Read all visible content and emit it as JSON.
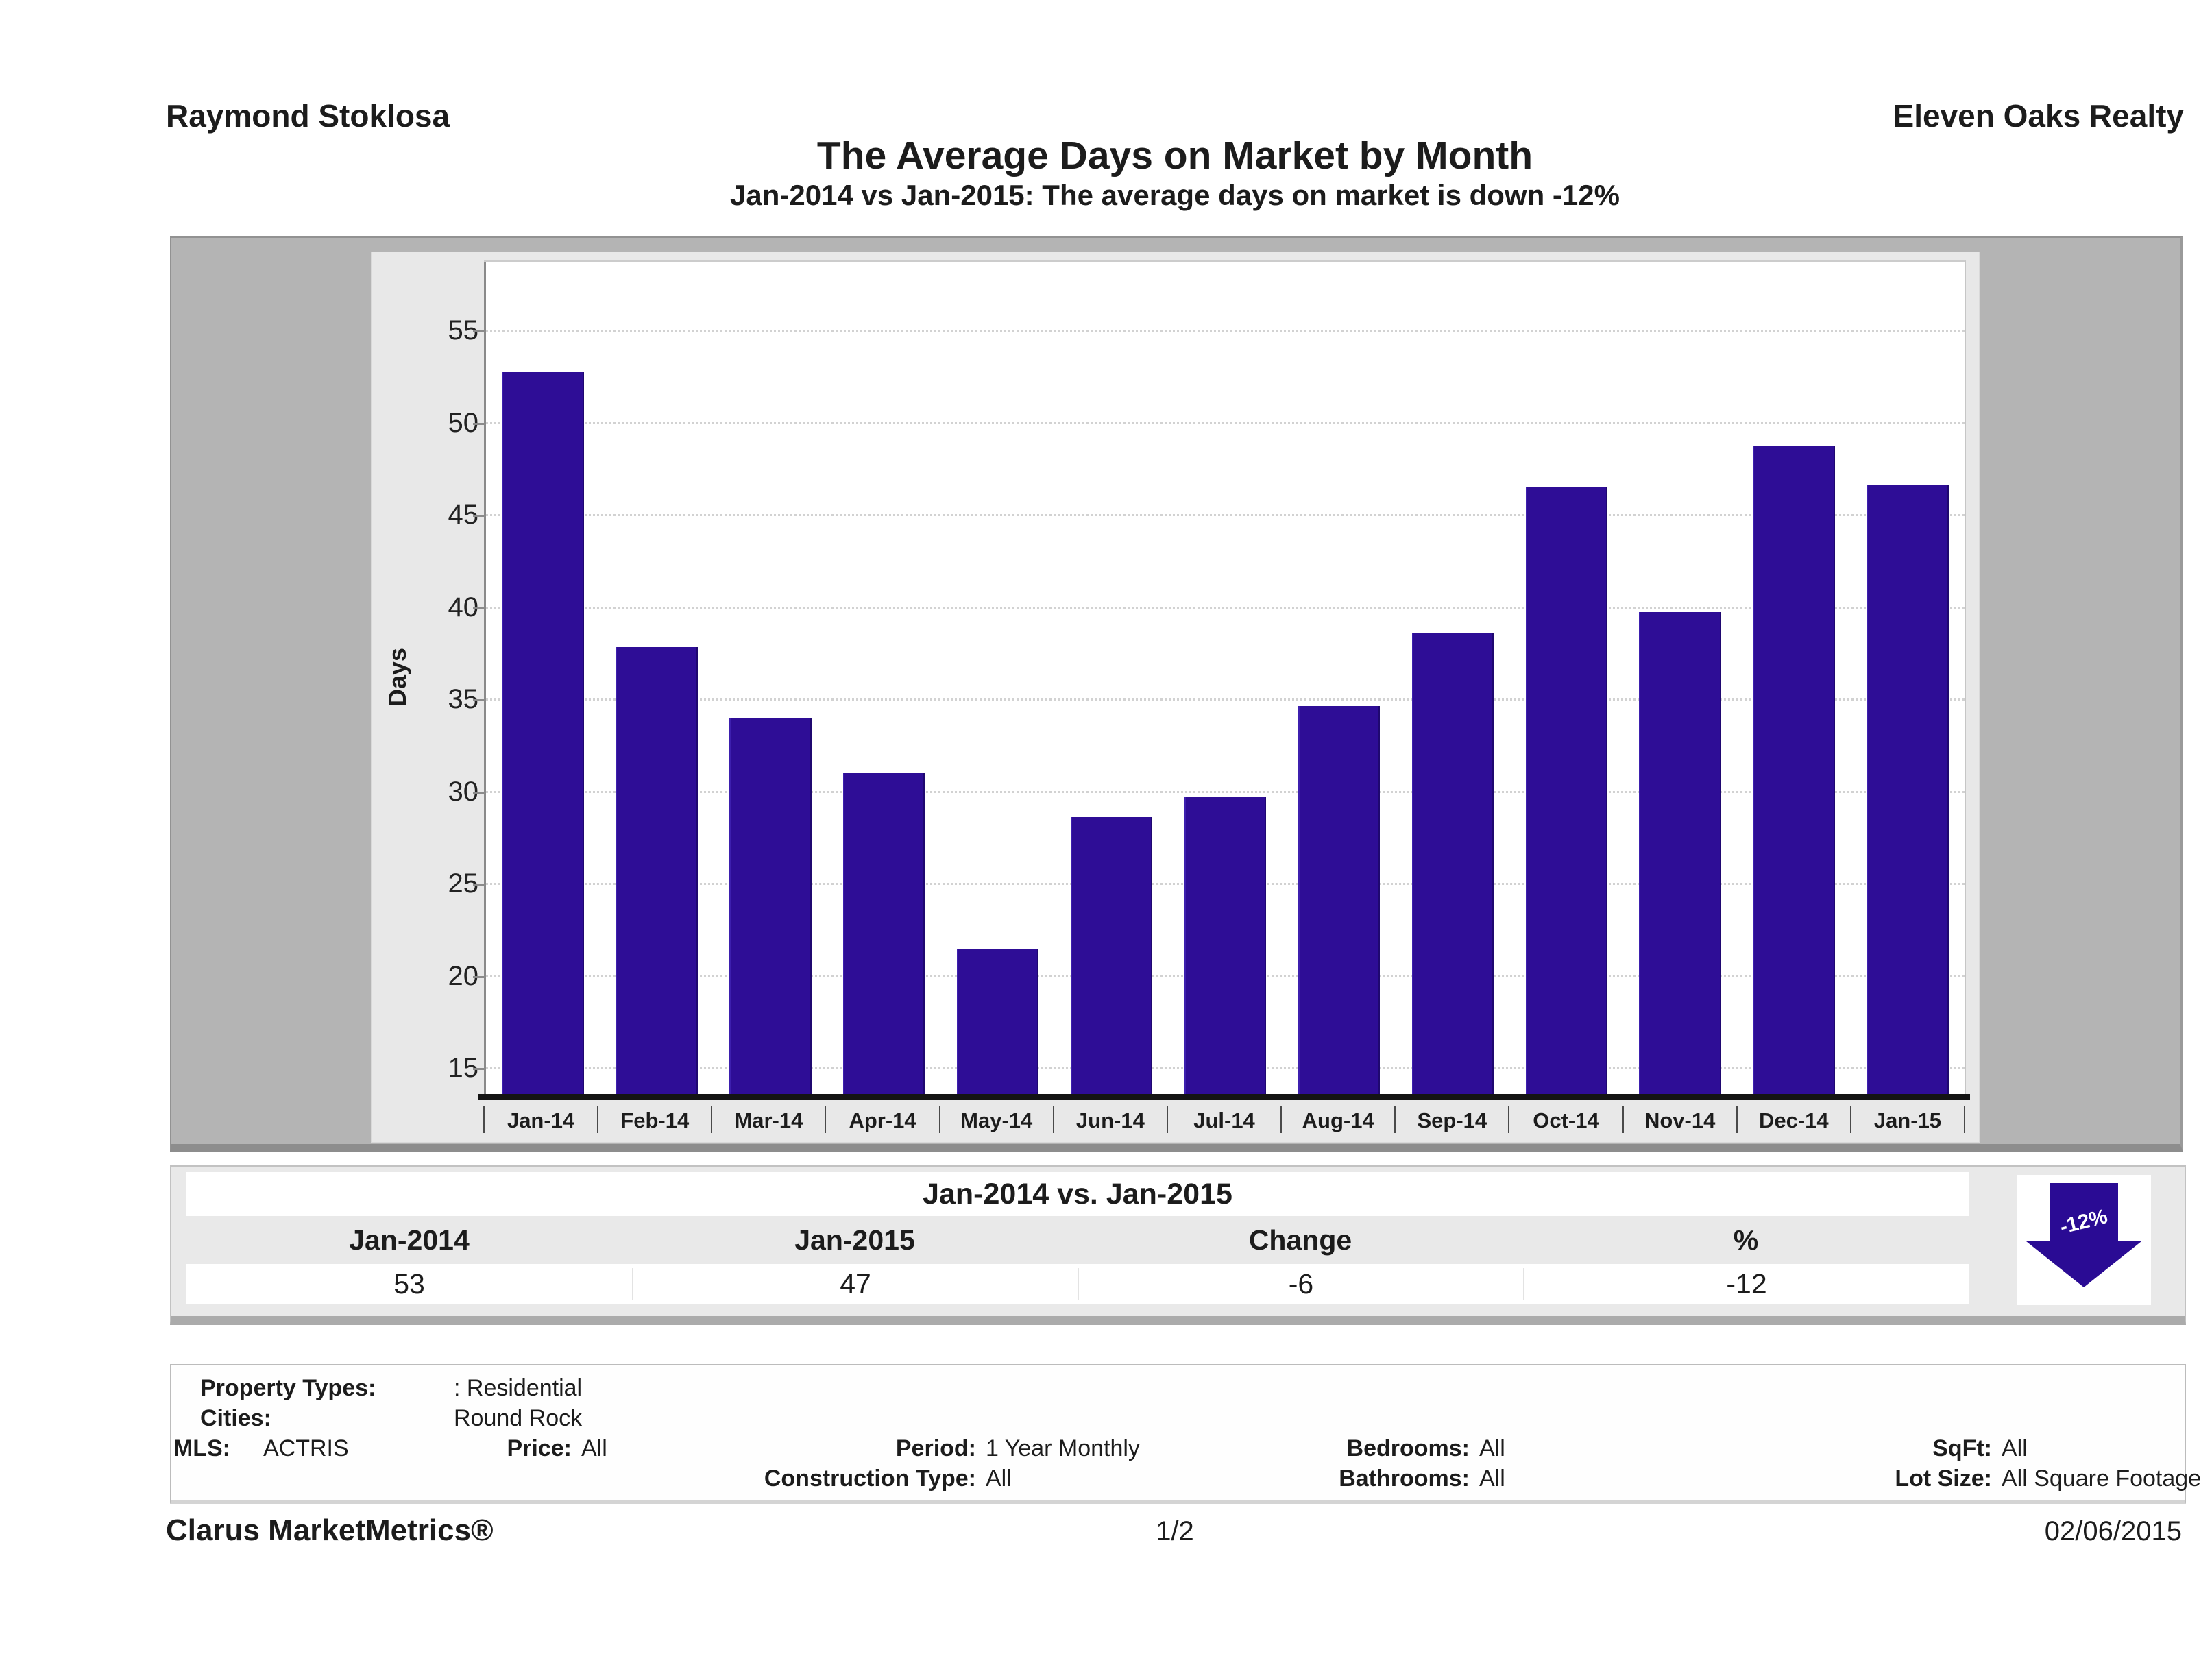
{
  "header": {
    "agent": "Raymond Stoklosa",
    "company": "Eleven Oaks Realty"
  },
  "title": "The Average Days on Market by Month",
  "subtitle": "Jan-2014 vs Jan-2015: The average days on market is down -12%",
  "chart_data": {
    "type": "bar",
    "title": "The Average Days on Market by Month",
    "categories": [
      "Jan-14",
      "Feb-14",
      "Mar-14",
      "Apr-14",
      "May-14",
      "Jun-14",
      "Jul-14",
      "Aug-14",
      "Sep-14",
      "Oct-14",
      "Nov-14",
      "Dec-14",
      "Jan-15"
    ],
    "values": [
      52.8,
      37.9,
      34.1,
      31.1,
      21.5,
      28.7,
      29.8,
      34.7,
      38.7,
      46.6,
      39.8,
      48.8,
      46.7
    ],
    "xlabel": "",
    "ylabel": "Days",
    "yticks": [
      15,
      20,
      25,
      30,
      35,
      40,
      45,
      50,
      55
    ],
    "ylim": [
      13.6,
      58.8
    ],
    "grid": true,
    "legend": false,
    "bar_color": "#2e0d96"
  },
  "comparison": {
    "title": "Jan-2014 vs. Jan-2015",
    "columns": [
      "Jan-2014",
      "Jan-2015",
      "Change",
      "%"
    ],
    "values": [
      "53",
      "47",
      "-6",
      "-12"
    ],
    "badge": {
      "label": "-12%",
      "direction": "down",
      "color": "#2a0b94"
    }
  },
  "criteria": {
    "pair_rows": [
      {
        "label": "Property Types:",
        "value": ": Residential"
      },
      {
        "label": "Cities:",
        "value": "Round Rock"
      }
    ],
    "table_rows": [
      [
        {
          "label": "MLS:",
          "value": "ACTRIS"
        },
        {
          "label": "Price:",
          "value": "All"
        },
        {
          "label": "Period:",
          "value": "1 Year Monthly"
        },
        {
          "label": "Bedrooms:",
          "value": "All"
        },
        {
          "label": "SqFt:",
          "value": "All"
        }
      ],
      [
        null,
        null,
        {
          "label": "Construction Type:",
          "value": "All"
        },
        {
          "label": "Bathrooms:",
          "value": "All"
        },
        {
          "label": "Lot Size:",
          "value": "All Square Footage"
        }
      ]
    ]
  },
  "footer": {
    "brand": "Clarus MarketMetrics®",
    "page": "1/2",
    "date": "02/06/2015"
  }
}
